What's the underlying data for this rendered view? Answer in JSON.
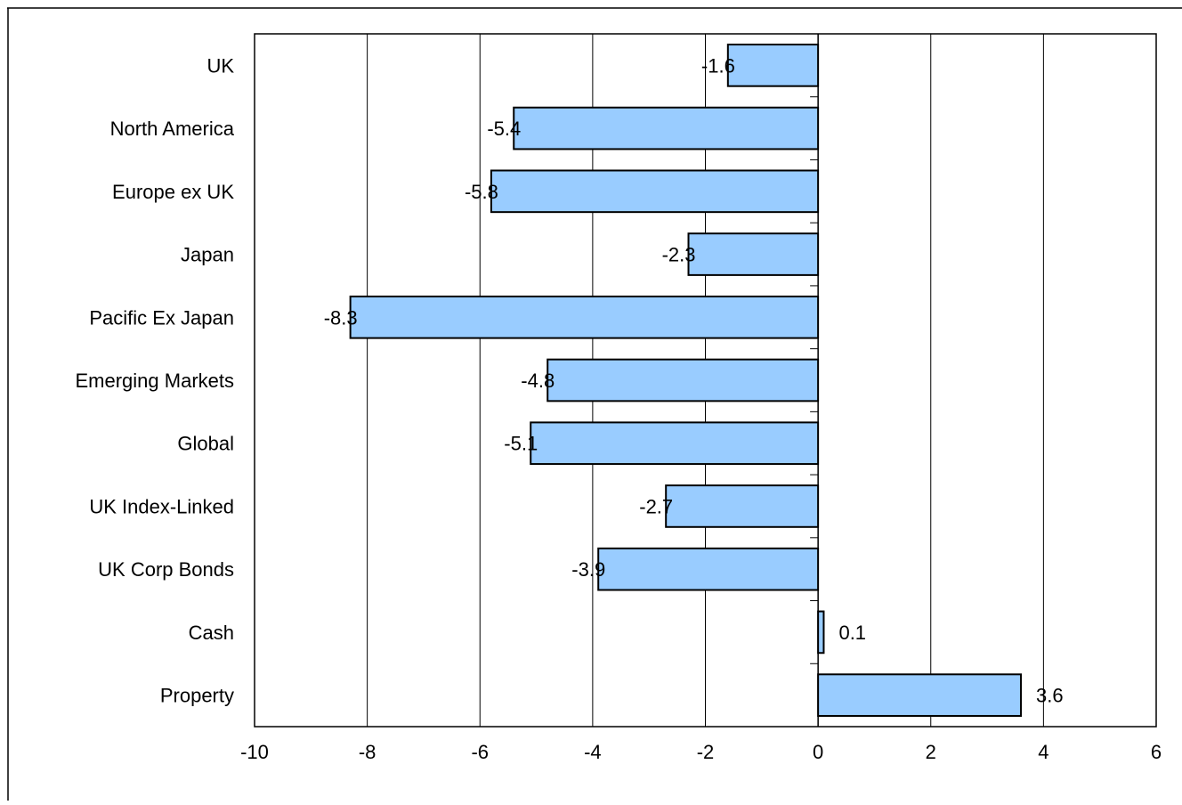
{
  "chart_data": {
    "type": "bar",
    "orientation": "horizontal",
    "title": "",
    "xlabel": "",
    "ylabel": "",
    "categories": [
      "UK",
      "North America",
      "Europe ex UK",
      "Japan",
      "Pacific Ex Japan",
      "Emerging Markets",
      "Global",
      "UK Index-Linked",
      "UK Corp Bonds",
      "Cash",
      "Property"
    ],
    "values": [
      -1.6,
      -5.4,
      -5.8,
      -2.3,
      -8.3,
      -4.8,
      -5.1,
      -2.7,
      -3.9,
      0.1,
      3.6
    ],
    "data_labels": [
      "-1.6",
      "-5.4",
      "-5.8",
      "-2.3",
      "-8.3",
      "-4.8",
      "-5.1",
      "-2.7",
      "-3.9",
      "0.1",
      "3.6"
    ],
    "xlim": [
      -10,
      6
    ],
    "xticks": [
      -10,
      -8,
      -6,
      -4,
      -2,
      0,
      2,
      4,
      6
    ],
    "xtick_labels": [
      "-10",
      "-8",
      "-6",
      "-4",
      "-2",
      "0",
      "2",
      "4",
      "6"
    ],
    "grid": "vertical",
    "legend": "none",
    "colors": {
      "bar_fill": "#99ccff",
      "bar_stroke": "#000000",
      "grid": "#000000",
      "background": "#ffffff"
    }
  }
}
